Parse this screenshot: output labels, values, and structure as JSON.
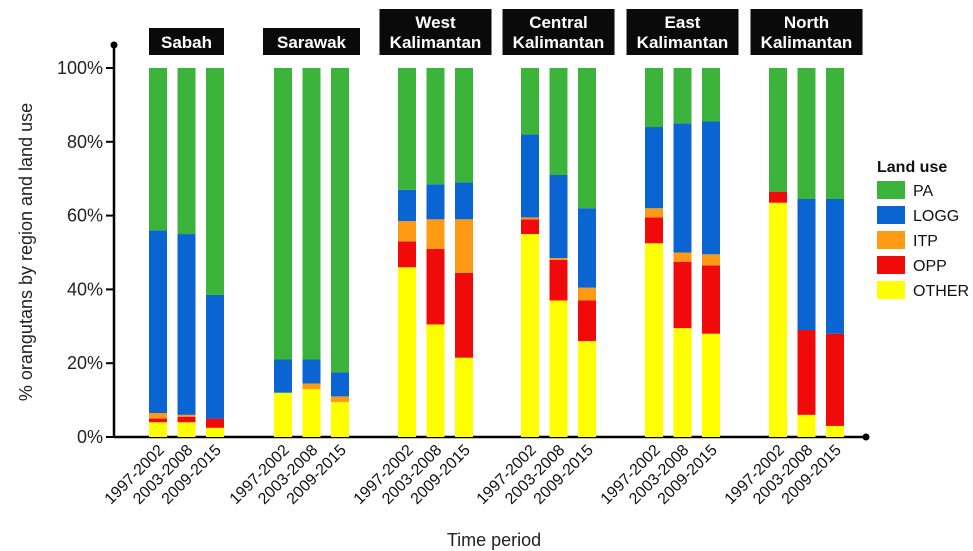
{
  "chart_data": {
    "type": "bar",
    "stacked": true,
    "xlabel": "Time period",
    "ylabel": "% orangutans by region and land use",
    "ylim": [
      0,
      100
    ],
    "yticks": [
      "0%",
      "20%",
      "40%",
      "60%",
      "80%",
      "100%"
    ],
    "categories": [
      "1997-2002",
      "2003-2008",
      "2009-2015"
    ],
    "legend": {
      "title": "Land use",
      "placement": "right",
      "items": [
        {
          "name": "PA",
          "color": "#3cb43c"
        },
        {
          "name": "LOGG",
          "color": "#0a64d2"
        },
        {
          "name": "ITP",
          "color": "#ff9a14"
        },
        {
          "name": "OPP",
          "color": "#f00a0a"
        },
        {
          "name": "OTHER",
          "color": "#ffff00"
        }
      ]
    },
    "stack_order": [
      "OTHER",
      "OPP",
      "ITP",
      "LOGG",
      "PA"
    ],
    "colors": {
      "PA": "#3cb43c",
      "LOGG": "#0a64d2",
      "ITP": "#ff9a14",
      "OPP": "#f00a0a",
      "OTHER": "#ffff00"
    },
    "panels": [
      {
        "title": [
          "Sabah"
        ],
        "bars": [
          {
            "OTHER": 4,
            "OPP": 1,
            "ITP": 1.5,
            "LOGG": 49.5,
            "PA": 44
          },
          {
            "OTHER": 4,
            "OPP": 1.5,
            "ITP": 0.5,
            "LOGG": 49,
            "PA": 45
          },
          {
            "OTHER": 2.5,
            "OPP": 2.5,
            "ITP": 0,
            "LOGG": 33.5,
            "PA": 61.5
          }
        ]
      },
      {
        "title": [
          "Sarawak"
        ],
        "bars": [
          {
            "OTHER": 12,
            "OPP": 0,
            "ITP": 0,
            "LOGG": 9,
            "PA": 79
          },
          {
            "OTHER": 13,
            "OPP": 0,
            "ITP": 1.5,
            "LOGG": 6.5,
            "PA": 79
          },
          {
            "OTHER": 9.5,
            "OPP": 0,
            "ITP": 1.5,
            "LOGG": 6.5,
            "PA": 82.5
          }
        ]
      },
      {
        "title": [
          "West",
          "Kalimantan"
        ],
        "bars": [
          {
            "OTHER": 46,
            "OPP": 7,
            "ITP": 5.5,
            "LOGG": 8.5,
            "PA": 33
          },
          {
            "OTHER": 30.5,
            "OPP": 20.5,
            "ITP": 8,
            "LOGG": 9.5,
            "PA": 31.5
          },
          {
            "OTHER": 21.5,
            "OPP": 23,
            "ITP": 14.5,
            "LOGG": 10,
            "PA": 31
          }
        ]
      },
      {
        "title": [
          "Central",
          "Kalimantan"
        ],
        "bars": [
          {
            "OTHER": 55,
            "OPP": 4,
            "ITP": 0.5,
            "LOGG": 22.5,
            "PA": 18
          },
          {
            "OTHER": 37,
            "OPP": 11,
            "ITP": 0.5,
            "LOGG": 22.5,
            "PA": 29
          },
          {
            "OTHER": 26,
            "OPP": 11,
            "ITP": 3.5,
            "LOGG": 21.5,
            "PA": 38
          }
        ]
      },
      {
        "title": [
          "East",
          "Kalimantan"
        ],
        "bars": [
          {
            "OTHER": 52.5,
            "OPP": 7,
            "ITP": 2.5,
            "LOGG": 22,
            "PA": 16
          },
          {
            "OTHER": 29.5,
            "OPP": 18,
            "ITP": 2.5,
            "LOGG": 35,
            "PA": 15
          },
          {
            "OTHER": 28,
            "OPP": 18.5,
            "ITP": 3,
            "LOGG": 36,
            "PA": 14.5
          }
        ]
      },
      {
        "title": [
          "North",
          "Kalimantan"
        ],
        "bars": [
          {
            "OTHER": 63.5,
            "OPP": 3,
            "ITP": 0,
            "LOGG": 0,
            "PA": 33.5
          },
          {
            "OTHER": 6,
            "OPP": 23,
            "ITP": 0,
            "LOGG": 35.5,
            "PA": 35.5
          },
          {
            "OTHER": 3,
            "OPP": 25,
            "ITP": 0,
            "LOGG": 36.5,
            "PA": 35.5
          }
        ]
      }
    ]
  }
}
